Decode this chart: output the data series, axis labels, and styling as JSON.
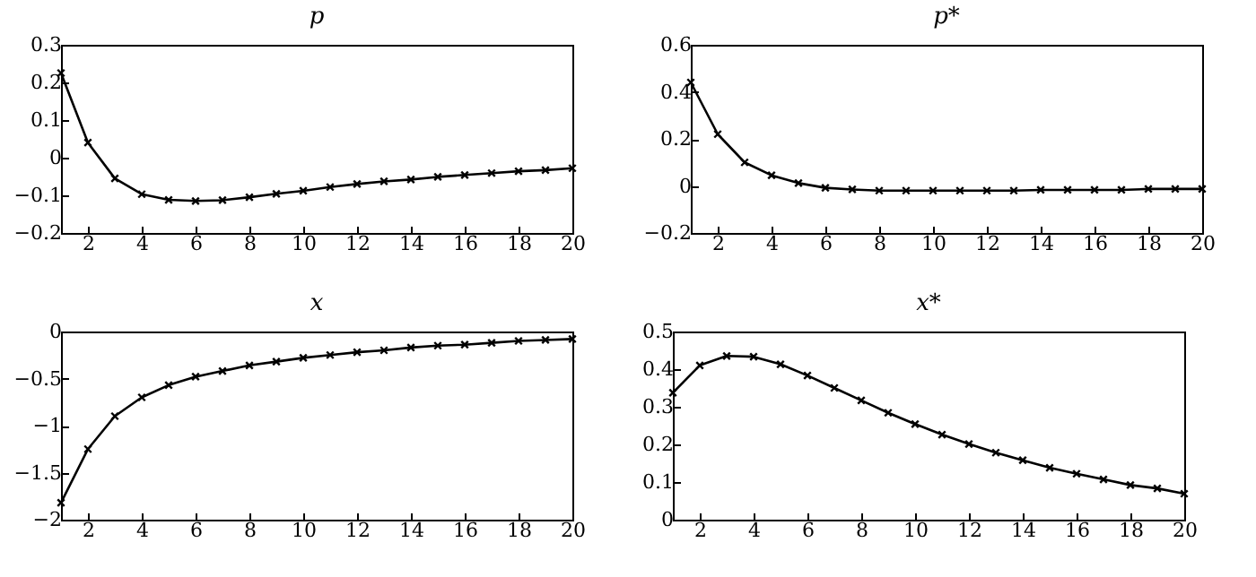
{
  "chart_data": [
    {
      "type": "line",
      "title": "p",
      "x": [
        1,
        2,
        3,
        4,
        5,
        6,
        7,
        8,
        9,
        10,
        11,
        12,
        13,
        14,
        15,
        16,
        17,
        18,
        19,
        20
      ],
      "marker": "cross",
      "color": "#000000",
      "xlim": [
        1,
        20
      ],
      "xticks": [
        2,
        4,
        6,
        8,
        10,
        12,
        14,
        16,
        18,
        20
      ],
      "ylim": [
        -0.2,
        0.3
      ],
      "yticks": [
        -0.2,
        -0.1,
        0,
        0.1,
        0.2,
        0.3
      ],
      "values": [
        0.225,
        0.04,
        -0.055,
        -0.097,
        -0.112,
        -0.115,
        -0.113,
        -0.105,
        -0.096,
        -0.088,
        -0.078,
        -0.07,
        -0.063,
        -0.058,
        -0.051,
        -0.046,
        -0.041,
        -0.036,
        -0.033,
        -0.028
      ]
    },
    {
      "type": "line",
      "title": "p*",
      "x": [
        1,
        2,
        3,
        4,
        5,
        6,
        7,
        8,
        9,
        10,
        11,
        12,
        13,
        14,
        15,
        16,
        17,
        18,
        19,
        20
      ],
      "marker": "cross",
      "color": "#000000",
      "xlim": [
        1,
        20
      ],
      "xticks": [
        2,
        4,
        6,
        8,
        10,
        12,
        14,
        16,
        18,
        20
      ],
      "ylim": [
        -0.2,
        0.6
      ],
      "yticks": [
        -0.2,
        0,
        0.2,
        0.4,
        0.6
      ],
      "values": [
        0.44,
        0.22,
        0.1,
        0.045,
        0.012,
        -0.008,
        -0.015,
        -0.02,
        -0.02,
        -0.02,
        -0.02,
        -0.02,
        -0.02,
        -0.017,
        -0.017,
        -0.017,
        -0.017,
        -0.013,
        -0.013,
        -0.013
      ]
    },
    {
      "type": "line",
      "title": "x",
      "x": [
        1,
        2,
        3,
        4,
        5,
        6,
        7,
        8,
        9,
        10,
        11,
        12,
        13,
        14,
        15,
        16,
        17,
        18,
        19,
        20
      ],
      "marker": "cross",
      "color": "#000000",
      "xlim": [
        1,
        20
      ],
      "xticks": [
        2,
        4,
        6,
        8,
        10,
        12,
        14,
        16,
        18,
        20
      ],
      "ylim": [
        -2,
        0
      ],
      "yticks": [
        -2,
        -1.5,
        -1,
        -0.5,
        0
      ],
      "values": [
        -1.82,
        -1.25,
        -0.9,
        -0.7,
        -0.57,
        -0.48,
        -0.42,
        -0.36,
        -0.32,
        -0.28,
        -0.25,
        -0.22,
        -0.2,
        -0.17,
        -0.15,
        -0.14,
        -0.12,
        -0.1,
        -0.09,
        -0.08
      ]
    },
    {
      "type": "line",
      "title": "x*",
      "x": [
        1,
        2,
        3,
        4,
        5,
        6,
        7,
        8,
        9,
        10,
        11,
        12,
        13,
        14,
        15,
        16,
        17,
        18,
        19,
        20
      ],
      "marker": "cross",
      "color": "#000000",
      "xlim": [
        1,
        20
      ],
      "xticks": [
        2,
        4,
        6,
        8,
        10,
        12,
        14,
        16,
        18,
        20
      ],
      "ylim": [
        0,
        0.5
      ],
      "yticks": [
        0,
        0.1,
        0.2,
        0.3,
        0.4,
        0.5
      ],
      "values": [
        0.337,
        0.41,
        0.435,
        0.433,
        0.413,
        0.383,
        0.35,
        0.317,
        0.284,
        0.254,
        0.226,
        0.201,
        0.178,
        0.158,
        0.138,
        0.122,
        0.107,
        0.092,
        0.083,
        0.069
      ]
    }
  ]
}
